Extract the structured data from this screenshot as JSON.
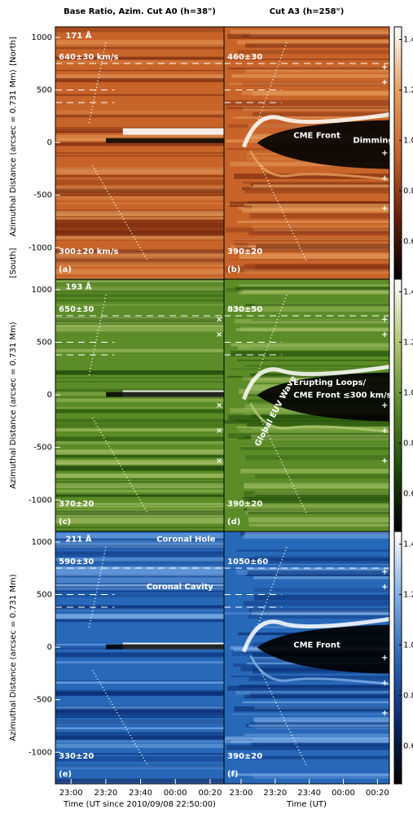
{
  "chart_data": [
    {
      "type": "image",
      "title": "Base Ratio, Azim. Cut A0 (h=38\")",
      "ylabel": "Azimuthal Distance (arcsec = 0.731 Mm)",
      "north": "[North]",
      "south": "[South]",
      "panel_label": "(a)",
      "annotations": [
        "171 Å",
        "640±30 km/s",
        "300±20 km/s"
      ],
      "colormap": [
        "#000000",
        "#6a2008",
        "#c8642a",
        "#e8a060",
        "#ffffff"
      ],
      "ylim": [
        -1300,
        1100
      ],
      "yticks": [
        -1000,
        -500,
        0,
        500,
        1000
      ]
    },
    {
      "type": "image",
      "title": "Cut A3 (h=258\")",
      "panel_label": "(b)",
      "annotations": [
        "460±30",
        "CME Front",
        "Dimming",
        "390±20"
      ],
      "colormap": [
        "#000000",
        "#6a2008",
        "#c8642a",
        "#e8a060",
        "#ffffff"
      ],
      "clim": [
        0.45,
        1.45
      ],
      "cticks": [
        0.6,
        0.8,
        {
          "value": 1,
          "label": "1.0"
        },
        1.2,
        1.4
      ]
    },
    {
      "type": "image",
      "ylabel": "Azimuthal Distance (arcsec = 0.731 Mm)",
      "panel_label": "(c)",
      "annotations": [
        "193 Å",
        "650±30",
        "370±20"
      ],
      "colormap": [
        "#000000",
        "#1e4a08",
        "#5c8c28",
        "#b0c870",
        "#ffffff"
      ],
      "ylim": [
        -1300,
        1100
      ],
      "yticks": [
        -1000,
        -500,
        0,
        500,
        1000
      ]
    },
    {
      "type": "image",
      "panel_label": "(d)",
      "annotations": [
        "830±50",
        "Erupting Loops/",
        "CME Front ≲300 km/s",
        "Global EUV Wave",
        "390±20"
      ],
      "colormap": [
        "#000000",
        "#1e4a08",
        "#5c8c28",
        "#b0c870",
        "#ffffff"
      ],
      "clim": [
        0.45,
        1.45
      ],
      "cticks": [
        0.6,
        0.8,
        {
          "value": 1,
          "label": "1.0"
        },
        1.2,
        1.4
      ]
    },
    {
      "type": "image",
      "ylabel": "Azimuthal Distance (arcsec = 0.731 Mm)",
      "xlabel": "Time (UT since 2010/09/08 22:50:00)",
      "panel_label": "(e)",
      "annotations": [
        "211 Å",
        "Coronal Hole",
        "590±30",
        "Coronal Cavity",
        "330±20"
      ],
      "colormap": [
        "#000000",
        "#082a70",
        "#2868b8",
        "#80b0e8",
        "#ffffff"
      ],
      "ylim": [
        -1300,
        1100
      ],
      "yticks": [
        -1000,
        -500,
        0,
        500,
        1000
      ],
      "xlim": [
        1,
        98
      ],
      "xticks": [
        {
          "value": 10,
          "label": "23:00"
        },
        {
          "value": 30,
          "label": "23:20"
        },
        {
          "value": 50,
          "label": "23:40"
        },
        {
          "value": 70,
          "label": "00:00"
        },
        {
          "value": 90,
          "label": "00:20"
        }
      ]
    },
    {
      "type": "image",
      "xlabel": "Time (UT)",
      "panel_label": "(f)",
      "annotations": [
        "1050±60",
        "CME Front",
        "390±20"
      ],
      "colormap": [
        "#000000",
        "#082a70",
        "#2868b8",
        "#80b0e8",
        "#ffffff"
      ],
      "clim": [
        0.45,
        1.45
      ],
      "cticks": [
        0.6,
        0.8,
        {
          "value": 1,
          "label": "1.0"
        },
        1.2,
        1.4
      ],
      "xlim": [
        0,
        97
      ],
      "xticks": [
        {
          "value": 10,
          "label": "23:00"
        },
        {
          "value": 30,
          "label": "23:20"
        },
        {
          "value": 50,
          "label": "23:40"
        },
        {
          "value": 70,
          "label": "00:00"
        },
        {
          "value": 90,
          "label": "00:20"
        }
      ]
    }
  ]
}
